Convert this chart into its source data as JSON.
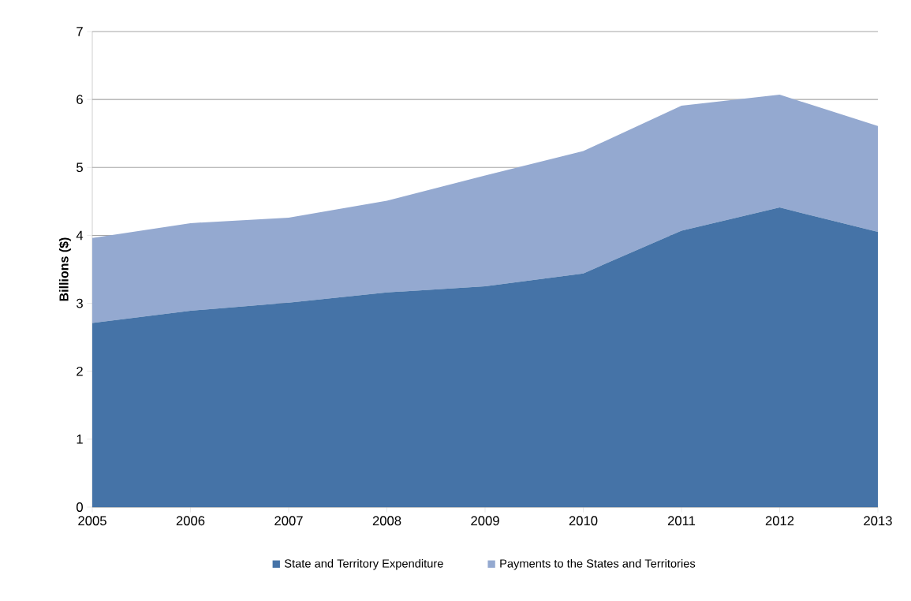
{
  "chart_data": {
    "type": "area",
    "stacked": true,
    "categories": [
      "2005",
      "2006",
      "2007",
      "2008",
      "2009",
      "2010",
      "2011",
      "2012",
      "2013"
    ],
    "series": [
      {
        "name": "State and Territory Expenditure",
        "color": "#4573a7",
        "values": [
          2.71,
          2.89,
          3.01,
          3.16,
          3.25,
          3.44,
          4.07,
          4.41,
          4.05
        ]
      },
      {
        "name": "Payments to the States and Territories",
        "color": "#94a9d0",
        "values": [
          1.25,
          1.29,
          1.25,
          1.35,
          1.63,
          1.8,
          1.84,
          1.66,
          1.56
        ]
      }
    ],
    "ylabel": "Billions ($)",
    "ylim": [
      0,
      7
    ],
    "yticks": [
      0,
      1,
      2,
      3,
      4,
      5,
      6,
      7
    ],
    "grid": "y",
    "legend": "bottom"
  }
}
